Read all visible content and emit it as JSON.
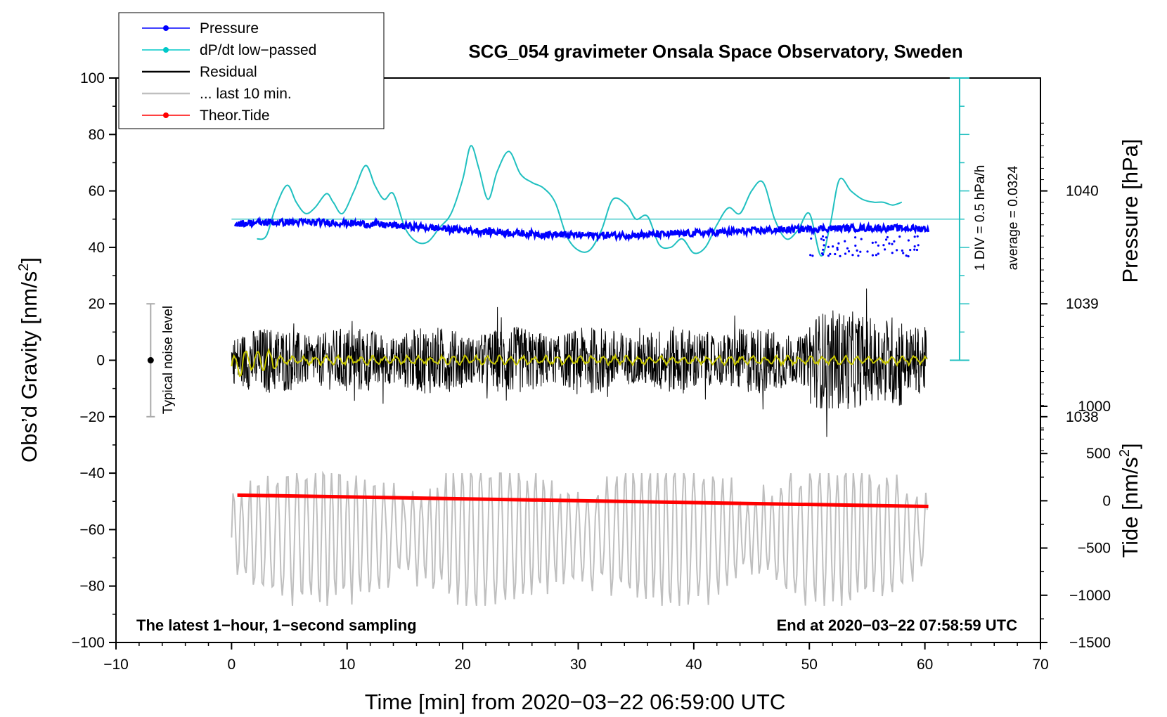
{
  "chart_data": {
    "type": "line",
    "title": "SCG_054 gravimeter Onsala Space Observatory, Sweden",
    "xlabel": "Time [min] from 2020−03−22 06:59:00 UTC",
    "ylabel_main": "Obs’d Gravity [nm/s",
    "ylabel_main_sup": "2",
    "ylabel_main_end": "]",
    "ylabel_pressure": "Pressure [hPa]",
    "ylabel_tide": "Tide [nm/s",
    "ylabel_tide_sup": "2",
    "ylabel_tide_end": "]",
    "xlim": [
      -10,
      70
    ],
    "ylim": [
      -100,
      100
    ],
    "x_ticks": [
      "−10",
      "0",
      "10",
      "20",
      "30",
      "40",
      "50",
      "60",
      "70"
    ],
    "x_tick_values": [
      -10,
      0,
      10,
      20,
      30,
      40,
      50,
      60,
      70
    ],
    "y_ticks": [
      "100",
      "80",
      "60",
      "40",
      "20",
      "0",
      "−20",
      "−40",
      "−60",
      "−80",
      "−100"
    ],
    "y_tick_values": [
      100,
      80,
      60,
      40,
      20,
      0,
      -20,
      -40,
      -60,
      -80,
      -100
    ],
    "pressure_axis": {
      "ticks": [
        "1040",
        "1039",
        "1038"
      ],
      "tick_values": [
        1040,
        1039,
        1038
      ],
      "range_hpa": [
        1036.0,
        1041.0
      ]
    },
    "tide_axis": {
      "ticks": [
        "1000",
        "500",
        "0",
        "−500",
        "−1000",
        "−1500"
      ],
      "tick_values": [
        1000,
        500,
        0,
        -500,
        -1000,
        -1500
      ],
      "range": [
        -1500,
        1000
      ]
    },
    "legend": [
      {
        "label": "Pressure",
        "color": "#0000ff",
        "marker": true
      },
      {
        "label": "dP/dt low−passed",
        "color": "#00c8c8",
        "marker": true
      },
      {
        "label": "Residual",
        "color": "#000000",
        "marker": false
      },
      {
        "label": "... last 10 min.",
        "color": "#bfbfbf",
        "marker": false
      },
      {
        "label": "Theor.Tide",
        "color": "#ff0000",
        "marker": true
      }
    ],
    "series": [
      {
        "name": "Pressure",
        "color": "#0000ff",
        "x_range": [
          0.3,
          60.3
        ],
        "level_hpa": 1039.65
      },
      {
        "name": "dP/dt low−passed",
        "color": "#20c0c0",
        "baseline_hpa_per_h": 0.0324,
        "x": [
          2.2,
          3.0,
          3.8,
          4.8,
          5.6,
          6.4,
          7.2,
          8.2,
          8.8,
          9.6,
          10.6,
          11.6,
          12.4,
          13.2,
          14.0,
          15.0,
          16.0,
          17.0,
          18.0,
          19.0,
          20.0,
          20.7,
          21.4,
          22.2,
          23.0,
          24.0,
          25.0,
          26.0,
          27.0,
          28.0,
          29.0,
          30.0,
          31.0,
          32.0,
          33.0,
          34.2,
          35.0,
          36.0,
          37.0,
          38.0,
          39.0,
          40.0,
          41.0,
          42.0,
          43.0,
          44.0,
          45.0,
          46.0,
          47.0,
          48.0,
          49.0,
          50.0,
          51.0,
          51.8,
          52.6,
          53.6,
          54.6,
          55.6,
          56.4,
          57.2,
          58.0
        ],
        "values_div": [
          -0.7,
          -0.6,
          0.4,
          1.2,
          0.6,
          0.2,
          0.4,
          0.9,
          0.6,
          0.2,
          1.0,
          1.9,
          1.2,
          0.7,
          0.9,
          -0.3,
          -0.8,
          -0.8,
          -0.3,
          0.2,
          1.4,
          2.6,
          1.8,
          0.7,
          1.7,
          2.4,
          1.6,
          1.3,
          1.1,
          0.6,
          -0.6,
          -1.1,
          -1.1,
          -0.4,
          0.7,
          0.5,
          0.0,
          0.1,
          -0.9,
          -1.0,
          -0.7,
          -1.2,
          -1.0,
          -0.2,
          0.4,
          0.2,
          1.0,
          1.3,
          0.0,
          -0.7,
          -0.4,
          0.2,
          -1.3,
          -0.2,
          1.4,
          1.0,
          0.7,
          0.6,
          0.6,
          0.5,
          0.6
        ]
      },
      {
        "name": "Residual",
        "color": "#000000",
        "x_range": [
          0.0,
          60.2
        ],
        "amplitude_range": [
          -30,
          32
        ]
      },
      {
        "name": "Residual smoothed",
        "color": "#c8c800",
        "x_range": [
          0.0,
          60.2
        ]
      },
      {
        "name": "... last 10 min.",
        "color": "#bfbfbf",
        "x_range": [
          0.0,
          60.2
        ],
        "center": -62,
        "amplitude_range": [
          -87,
          -40
        ]
      },
      {
        "name": "Theor.Tide",
        "color": "#ff0000",
        "x": [
          0.5,
          60.3
        ],
        "values_tide": [
          60,
          -60
        ]
      }
    ],
    "noise_level": {
      "label": "Typical noise level",
      "x": -7,
      "center": 0,
      "range": [
        -20,
        20
      ]
    },
    "dpdt_scale": {
      "div_label": "1 DIV = 0.5 hPa/h",
      "average_label": "average = 0.0324",
      "x": 63
    },
    "annotation_left": "The latest 1−hour, 1−second sampling",
    "annotation_right": "End at 2020−03−22 07:58:59 UTC"
  }
}
